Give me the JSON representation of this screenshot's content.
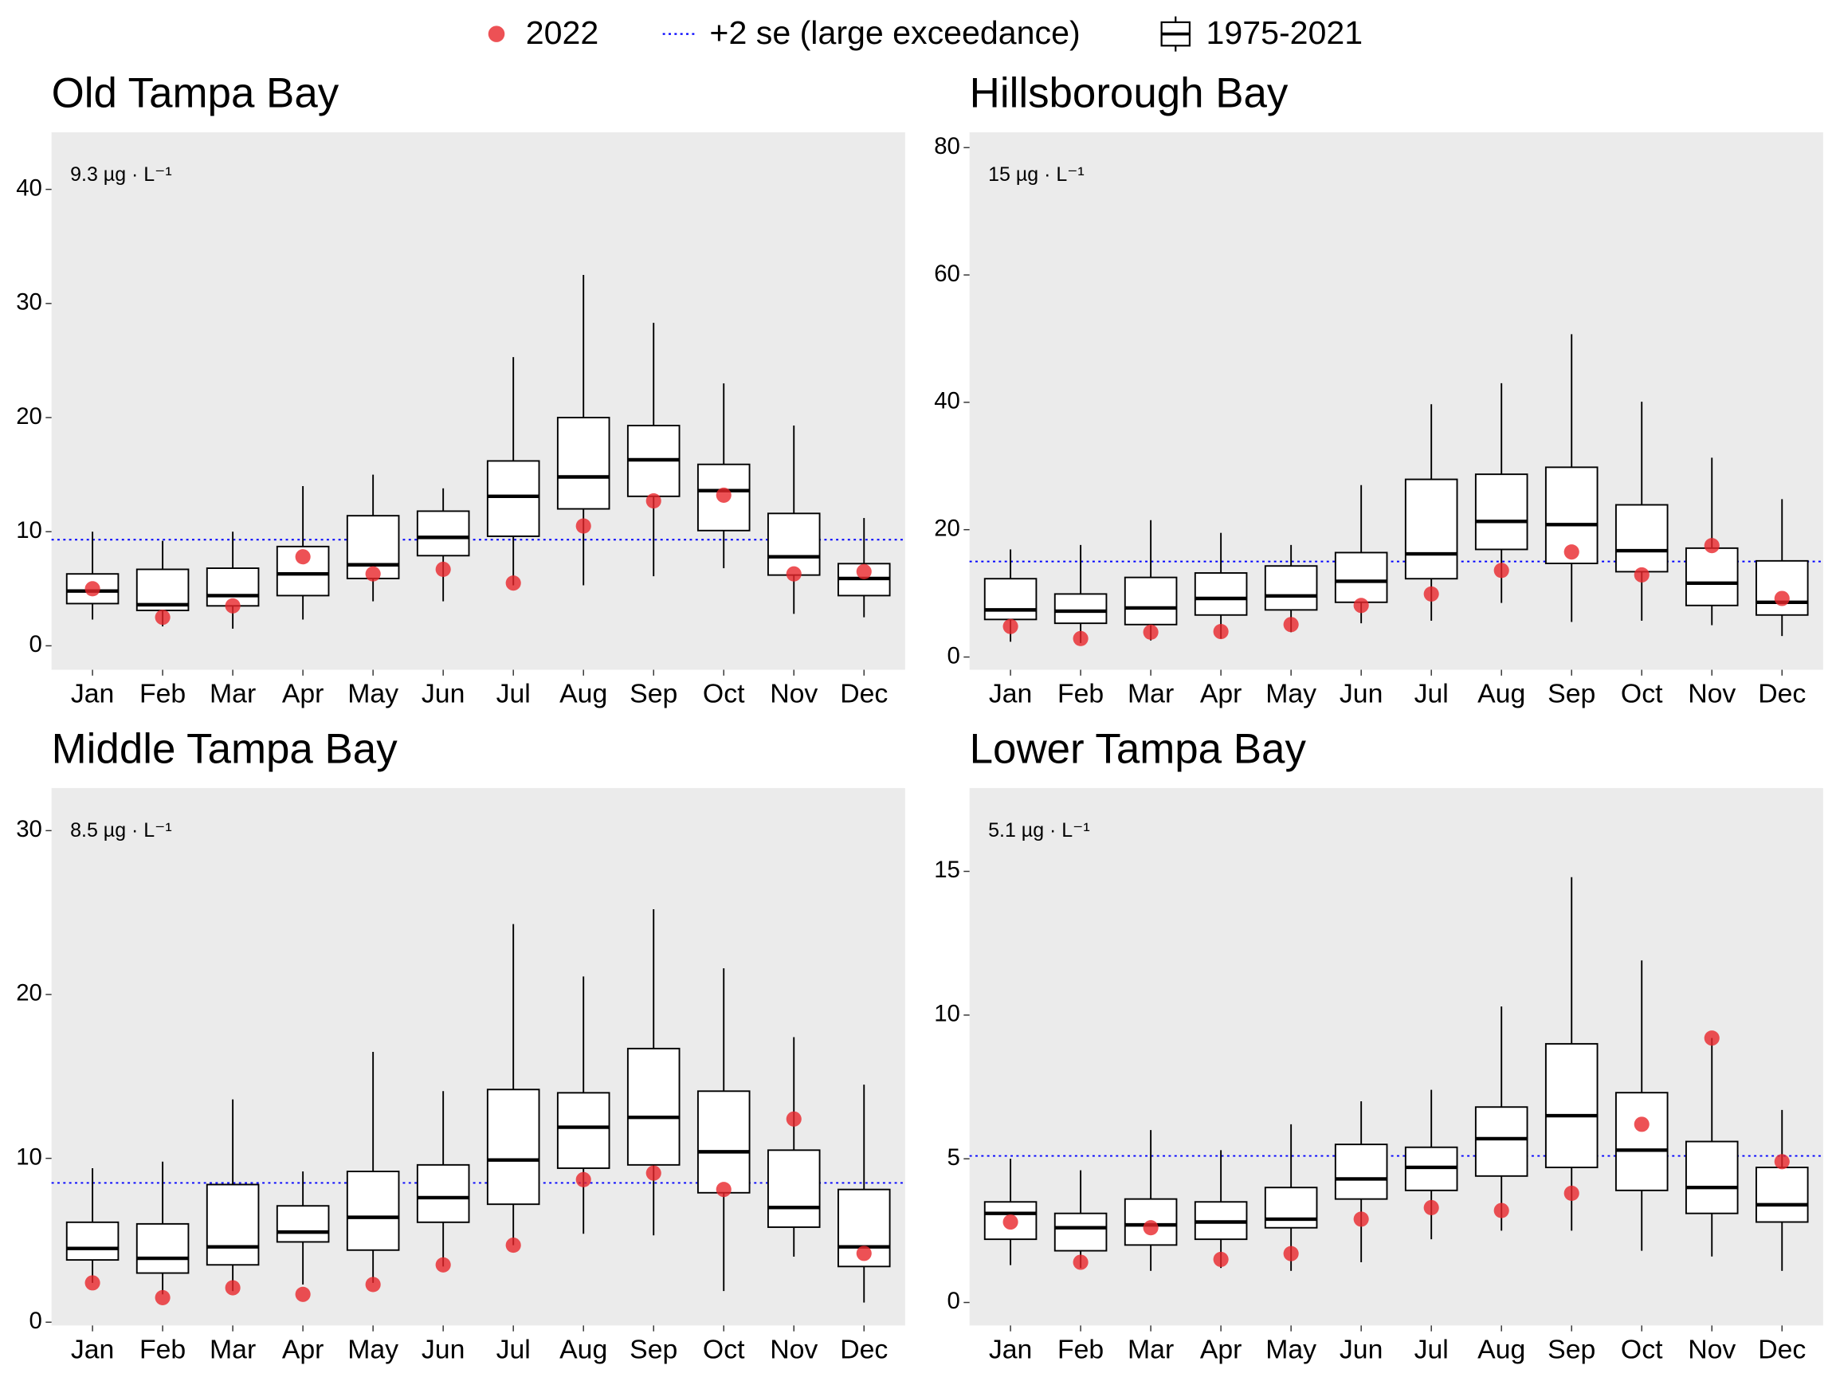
{
  "legend": [
    {
      "name": "2022",
      "color": "#e8262b"
    },
    {
      "name": "+2 se (large exceedance)",
      "color": "#0000ff"
    },
    {
      "name": "1975-2021",
      "color": "#000000"
    }
  ],
  "chart_data": [
    {
      "type": "box",
      "title": "Old Tampa Bay",
      "categories": [
        "Jan",
        "Feb",
        "Mar",
        "Apr",
        "May",
        "Jun",
        "Jul",
        "Aug",
        "Sep",
        "Oct",
        "Nov",
        "Dec"
      ],
      "boxes": {
        "low": [
          2.3,
          1.7,
          1.5,
          2.3,
          3.9,
          3.9,
          5.3,
          5.3,
          6.1,
          6.8,
          2.8,
          2.5
        ],
        "q1": [
          3.7,
          3.1,
          3.5,
          4.4,
          5.9,
          7.9,
          9.6,
          12.0,
          13.1,
          10.1,
          6.2,
          4.4
        ],
        "median": [
          4.8,
          3.6,
          4.4,
          6.3,
          7.1,
          9.5,
          13.1,
          14.8,
          16.3,
          13.6,
          7.8,
          5.9
        ],
        "q3": [
          6.3,
          6.7,
          6.8,
          8.7,
          11.4,
          11.8,
          16.2,
          20.0,
          19.3,
          15.9,
          11.6,
          7.2
        ],
        "high": [
          10.0,
          9.2,
          10.0,
          14.0,
          15.0,
          13.8,
          25.3,
          32.5,
          28.3,
          23.0,
          19.3,
          11.2
        ]
      },
      "points": [
        5.0,
        2.5,
        3.5,
        7.8,
        6.3,
        6.7,
        5.5,
        10.5,
        12.7,
        13.2,
        6.3,
        6.5
      ],
      "threshold": 9.3,
      "threshold_label": "9.3 µg · L⁻¹",
      "ylim": [
        -2.1,
        45
      ],
      "yticks": [
        0,
        10,
        20,
        30,
        40
      ],
      "grid": false
    },
    {
      "type": "box",
      "title": "Hillsborough Bay",
      "categories": [
        "Jan",
        "Feb",
        "Mar",
        "Apr",
        "May",
        "Jun",
        "Jul",
        "Aug",
        "Sep",
        "Oct",
        "Nov",
        "Dec"
      ],
      "boxes": {
        "low": [
          2.4,
          2.2,
          2.6,
          2.9,
          3.9,
          5.3,
          5.7,
          8.5,
          5.5,
          5.7,
          5.0,
          3.3
        ],
        "q1": [
          5.9,
          5.3,
          5.1,
          6.6,
          7.4,
          8.6,
          12.3,
          16.9,
          14.7,
          13.4,
          8.1,
          6.6
        ],
        "median": [
          7.4,
          7.2,
          7.7,
          9.2,
          9.6,
          11.9,
          16.2,
          21.3,
          20.8,
          16.7,
          11.6,
          8.6
        ],
        "q3": [
          12.3,
          9.9,
          12.5,
          13.2,
          14.3,
          16.4,
          27.9,
          28.7,
          29.8,
          23.9,
          17.1,
          15.1
        ],
        "high": [
          16.9,
          17.6,
          21.5,
          19.5,
          17.6,
          27.0,
          39.7,
          43.0,
          50.7,
          40.1,
          31.3,
          24.8
        ]
      },
      "points": [
        4.8,
        2.9,
        3.9,
        4.0,
        5.1,
        8.1,
        9.9,
        13.6,
        16.5,
        12.9,
        17.5,
        9.2
      ],
      "threshold": 15,
      "threshold_label": "15 µg · L⁻¹",
      "ylim": [
        -2.0,
        82.4
      ],
      "yticks": [
        0,
        20,
        40,
        60,
        80
      ],
      "grid": false
    },
    {
      "type": "box",
      "title": "Middle Tampa Bay",
      "categories": [
        "Jan",
        "Feb",
        "Mar",
        "Apr",
        "May",
        "Jun",
        "Jul",
        "Aug",
        "Sep",
        "Oct",
        "Nov",
        "Dec"
      ],
      "boxes": {
        "low": [
          2.4,
          1.7,
          1.9,
          2.3,
          2.4,
          3.4,
          4.7,
          5.4,
          5.3,
          1.9,
          4.0,
          1.2
        ],
        "q1": [
          3.8,
          3.0,
          3.5,
          4.9,
          4.4,
          6.1,
          7.2,
          9.4,
          9.6,
          7.9,
          5.8,
          3.4
        ],
        "median": [
          4.5,
          3.9,
          4.6,
          5.5,
          6.4,
          7.6,
          9.9,
          11.9,
          12.5,
          10.4,
          7.0,
          4.6
        ],
        "q3": [
          6.1,
          6.0,
          8.4,
          7.1,
          9.2,
          9.6,
          14.2,
          14.0,
          16.7,
          14.1,
          10.5,
          8.1
        ],
        "high": [
          9.4,
          9.8,
          13.6,
          9.2,
          16.5,
          14.1,
          24.3,
          21.1,
          25.2,
          21.6,
          17.4,
          14.5
        ]
      },
      "points": [
        2.4,
        1.5,
        2.1,
        1.7,
        2.3,
        3.5,
        4.7,
        8.7,
        9.1,
        8.1,
        12.4,
        4.2
      ],
      "threshold": 8.5,
      "threshold_label": "8.5 µg · L⁻¹",
      "ylim": [
        -0.2,
        32.6
      ],
      "yticks": [
        0,
        10,
        20,
        30
      ],
      "grid": false
    },
    {
      "type": "box",
      "title": "Lower Tampa Bay",
      "categories": [
        "Jan",
        "Feb",
        "Mar",
        "Apr",
        "May",
        "Jun",
        "Jul",
        "Aug",
        "Sep",
        "Oct",
        "Nov",
        "Dec"
      ],
      "boxes": {
        "low": [
          1.3,
          1.2,
          1.1,
          1.2,
          1.1,
          1.4,
          2.2,
          2.5,
          2.5,
          1.8,
          1.6,
          1.1
        ],
        "q1": [
          2.2,
          1.8,
          2.0,
          2.2,
          2.6,
          3.6,
          3.9,
          4.4,
          4.7,
          3.9,
          3.1,
          2.8
        ],
        "median": [
          3.1,
          2.6,
          2.7,
          2.8,
          2.9,
          4.3,
          4.7,
          5.7,
          6.5,
          5.3,
          4.0,
          3.4
        ],
        "q3": [
          3.5,
          3.1,
          3.6,
          3.5,
          4.0,
          5.5,
          5.4,
          6.8,
          9.0,
          7.3,
          5.6,
          4.7
        ],
        "high": [
          5.0,
          4.6,
          6.0,
          5.3,
          6.2,
          7.0,
          7.4,
          10.3,
          14.8,
          11.9,
          9.2,
          6.7
        ]
      },
      "points": [
        2.8,
        1.4,
        2.6,
        1.5,
        1.7,
        2.9,
        3.3,
        3.2,
        3.8,
        6.2,
        9.2,
        4.9
      ],
      "threshold": 5.1,
      "threshold_label": "5.1 µg · L⁻¹",
      "ylim": [
        -0.8,
        17.9
      ],
      "yticks": [
        0,
        5,
        10,
        15
      ],
      "grid": false
    }
  ]
}
